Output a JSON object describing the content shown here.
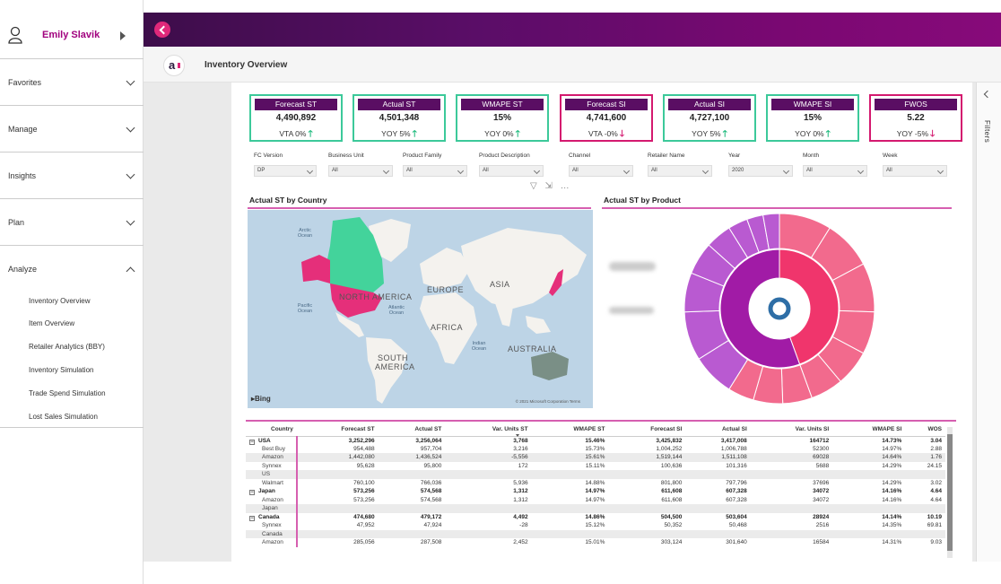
{
  "user": {
    "name": "Emily Slavik"
  },
  "nav": {
    "sections": [
      {
        "label": "Favorites"
      },
      {
        "label": "Manage"
      },
      {
        "label": "Insights"
      },
      {
        "label": "Plan"
      },
      {
        "label": "Analyze"
      }
    ],
    "analyze_items": [
      "Inventory Overview",
      "Item Overview",
      "Retailer Analytics (BBY)",
      "Inventory Simulation",
      "Trade Spend Simulation",
      "Lost Sales Simulation"
    ]
  },
  "header": {
    "logo_text": "a",
    "page_title": "Inventory Overview"
  },
  "filters_pane": {
    "label": "Filters"
  },
  "kpis": [
    {
      "title": "Forecast ST",
      "value": "4,490,892",
      "sub": "VTA 0%",
      "arrow": "up",
      "border": "green"
    },
    {
      "title": "Actual ST",
      "value": "4,501,348",
      "sub": "YOY 5%",
      "arrow": "up",
      "border": "green"
    },
    {
      "title": "WMAPE ST",
      "value": "15%",
      "sub": "YOY 0%",
      "arrow": "up",
      "border": "green"
    },
    {
      "title": "Forecast SI",
      "value": "4,741,600",
      "sub": "VTA -0%",
      "arrow": "down",
      "border": "pink"
    },
    {
      "title": "Actual SI",
      "value": "4,727,100",
      "sub": "YOY 5%",
      "arrow": "up",
      "border": "green"
    },
    {
      "title": "WMAPE SI",
      "value": "15%",
      "sub": "YOY 0%",
      "arrow": "up",
      "border": "green"
    },
    {
      "title": "FWOS",
      "value": "5.22",
      "sub": "YOY -5%",
      "arrow": "down",
      "border": "pink"
    }
  ],
  "slicers": [
    {
      "label": "FC Version",
      "value": "DP"
    },
    {
      "label": "Business Unit",
      "value": "All"
    },
    {
      "label": "Product Family",
      "value": "All"
    },
    {
      "label": "Product Description",
      "value": "All"
    },
    {
      "label": "Channel",
      "value": "All"
    },
    {
      "label": "Retailer Name",
      "value": "All"
    },
    {
      "label": "Year",
      "value": "2020"
    },
    {
      "label": "Month",
      "value": "All"
    },
    {
      "label": "Week",
      "value": "All"
    }
  ],
  "map": {
    "title": "Actual ST by Country",
    "continents": [
      "NORTH AMERICA",
      "SOUTH AMERICA",
      "EUROPE",
      "ASIA",
      "AFRICA",
      "AUSTRALIA"
    ],
    "oceans": [
      "Arctic Ocean",
      "Pacific Ocean",
      "Atlantic Ocean",
      "Indian Ocean",
      "Pacific Ocean"
    ],
    "attribution": "Bing",
    "copyright": "© 2021 Microsoft Corporation Terms",
    "colors": {
      "usa": "#e52f7a",
      "canada": "#43d39b",
      "alaska": "#e52f7a",
      "japan": "#e52f7a",
      "australia": "#7a8f86"
    }
  },
  "product": {
    "title": "Actual ST by Product",
    "colors": {
      "inner_pink": "#f0356c",
      "inner_purple": "#a11ba6",
      "outer_pink": "#f26a8d",
      "outer_purple": "#b95ad1",
      "center": "#2e6ea6"
    }
  },
  "table": {
    "columns": [
      "Country",
      "Forecast ST",
      "Actual ST",
      "Var. Units ST",
      "WMAPE ST",
      "Forecast SI",
      "Actual SI",
      "Var. Units SI",
      "WMAPE SI",
      "WOS"
    ],
    "rows": [
      {
        "type": "group",
        "cells": [
          "USA",
          "3,252,296",
          "3,256,064",
          "3,768",
          "15.46%",
          "3,425,832",
          "3,417,008",
          "164712",
          "14.73%",
          "3.04"
        ]
      },
      {
        "type": "child",
        "cells": [
          "Best Buy",
          "954,488",
          "957,704",
          "3,216",
          "15.73%",
          "1,004,252",
          "1,006,788",
          "52300",
          "14.97%",
          "2.88"
        ]
      },
      {
        "type": "child",
        "cells": [
          "Amazon",
          "1,442,080",
          "1,436,524",
          "-5,556",
          "15.61%",
          "1,519,144",
          "1,511,108",
          "69028",
          "14.64%",
          "1.76"
        ]
      },
      {
        "type": "child",
        "cells": [
          "Synnex",
          "95,628",
          "95,800",
          "172",
          "15.11%",
          "100,636",
          "101,316",
          "5688",
          "14.29%",
          "24.15"
        ]
      },
      {
        "type": "child",
        "cells": [
          "US",
          "",
          "",
          "",
          "",
          "",
          "",
          "",
          "",
          ""
        ]
      },
      {
        "type": "child",
        "cells": [
          "Walmart",
          "760,100",
          "766,036",
          "5,936",
          "14.88%",
          "801,800",
          "797,796",
          "37696",
          "14.29%",
          "3.02"
        ]
      },
      {
        "type": "group",
        "cells": [
          "Japan",
          "573,256",
          "574,568",
          "1,312",
          "14.97%",
          "611,608",
          "607,328",
          "34072",
          "14.16%",
          "4.64"
        ]
      },
      {
        "type": "child",
        "cells": [
          "Amazon",
          "573,256",
          "574,568",
          "1,312",
          "14.97%",
          "611,608",
          "607,328",
          "34072",
          "14.16%",
          "4.64"
        ]
      },
      {
        "type": "child",
        "cells": [
          "Japan",
          "",
          "",
          "",
          "",
          "",
          "",
          "",
          "",
          ""
        ]
      },
      {
        "type": "group",
        "cells": [
          "Canada",
          "474,680",
          "479,172",
          "4,492",
          "14.86%",
          "504,500",
          "503,604",
          "28924",
          "14.14%",
          "10.19"
        ]
      },
      {
        "type": "child",
        "cells": [
          "Synnex",
          "47,952",
          "47,924",
          "-28",
          "15.12%",
          "50,352",
          "50,468",
          "2516",
          "14.35%",
          "69.81"
        ]
      },
      {
        "type": "child",
        "cells": [
          "Canada",
          "",
          "",
          "",
          "",
          "",
          "",
          "",
          "",
          ""
        ]
      },
      {
        "type": "child",
        "cells": [
          "Amazon",
          "285,056",
          "287,508",
          "2,452",
          "15.01%",
          "303,124",
          "301,640",
          "16584",
          "14.31%",
          "9.03"
        ]
      }
    ]
  }
}
